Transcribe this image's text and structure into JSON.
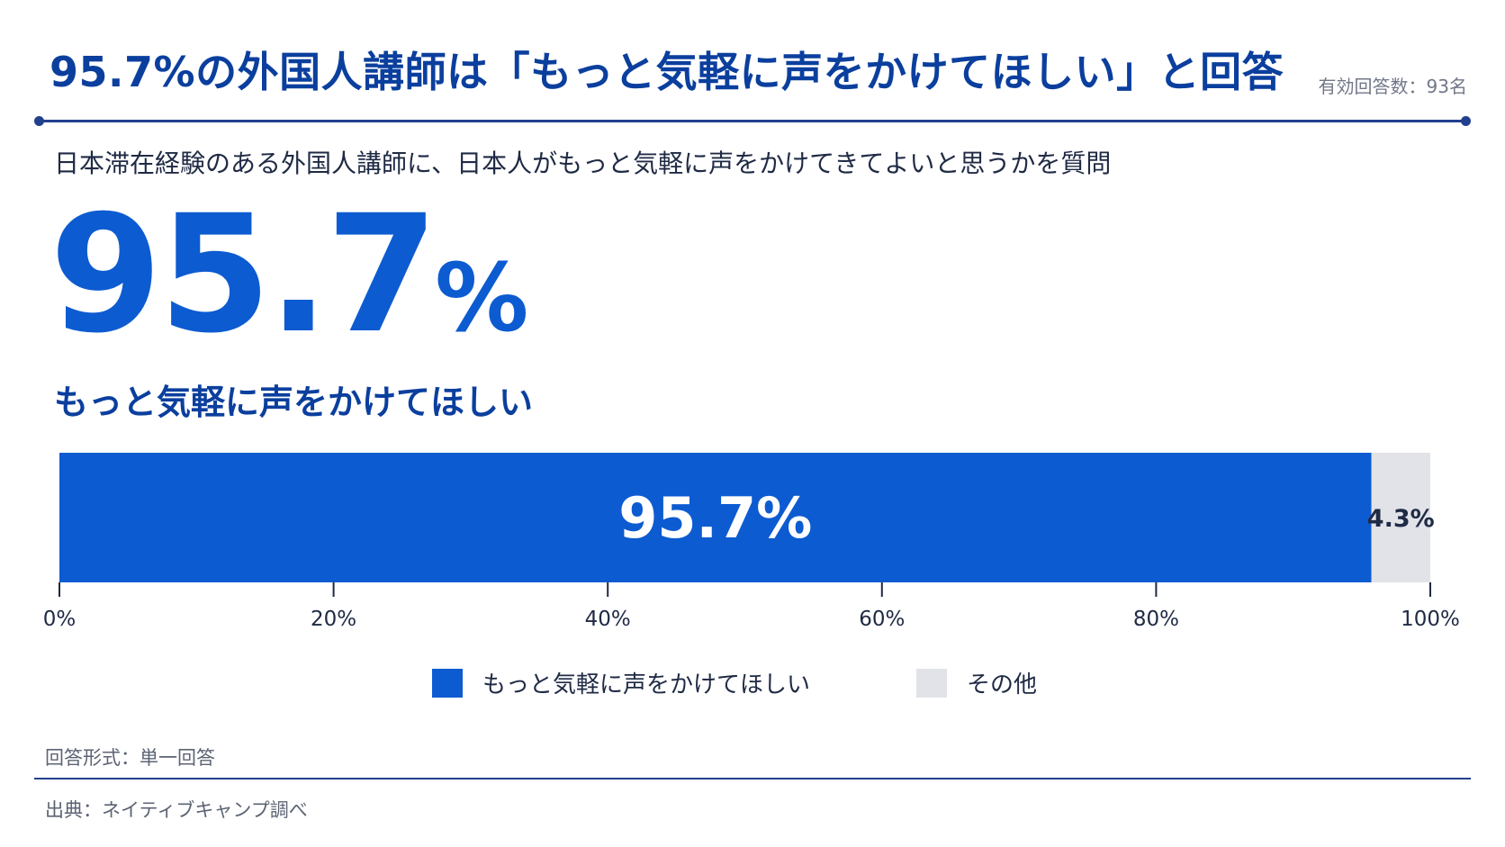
{
  "header": {
    "title": "95.7%の外国人講師は「もっと気軽に声をかけてほしい」と回答",
    "sample_size": "有効回答数：93名"
  },
  "question": "日本滞在経験のある外国人講師に、日本人がもっと気軽に声をかけてきてよいと思うかを質問",
  "headline": {
    "number": "95.7",
    "unit": "%",
    "label": "もっと気軽に声をかけてほしい"
  },
  "chart_data": {
    "type": "bar",
    "orientation": "horizontal-stacked",
    "series": [
      {
        "name": "もっと気軽に声をかけてほしい",
        "value": 95.7,
        "label": "95.7%",
        "color": "#0d5bd1",
        "label_color": "#ffffff"
      },
      {
        "name": "その他",
        "value": 4.3,
        "label": "4.3%",
        "color": "#e1e3e8",
        "label_color": "#1f2a44"
      }
    ],
    "xlim": [
      0,
      100
    ],
    "ticks": [
      {
        "value": 0,
        "label": "0%"
      },
      {
        "value": 20,
        "label": "20%"
      },
      {
        "value": 40,
        "label": "40%"
      },
      {
        "value": 60,
        "label": "60%"
      },
      {
        "value": 80,
        "label": "80%"
      },
      {
        "value": 100,
        "label": "100%"
      }
    ],
    "grid": false,
    "legend_position": "bottom-center"
  },
  "legend": [
    {
      "label": "もっと気軽に声をかけてほしい",
      "color": "#0d5bd1"
    },
    {
      "label": "その他",
      "color": "#e1e3e8"
    }
  ],
  "footer": {
    "answer_format": "回答形式：単一回答",
    "source": "出典：ネイティブキャンプ調べ"
  },
  "colors": {
    "accent": "#0d5bd1",
    "title": "#0b3f9e",
    "rule": "#23408e",
    "other": "#e1e3e8"
  }
}
